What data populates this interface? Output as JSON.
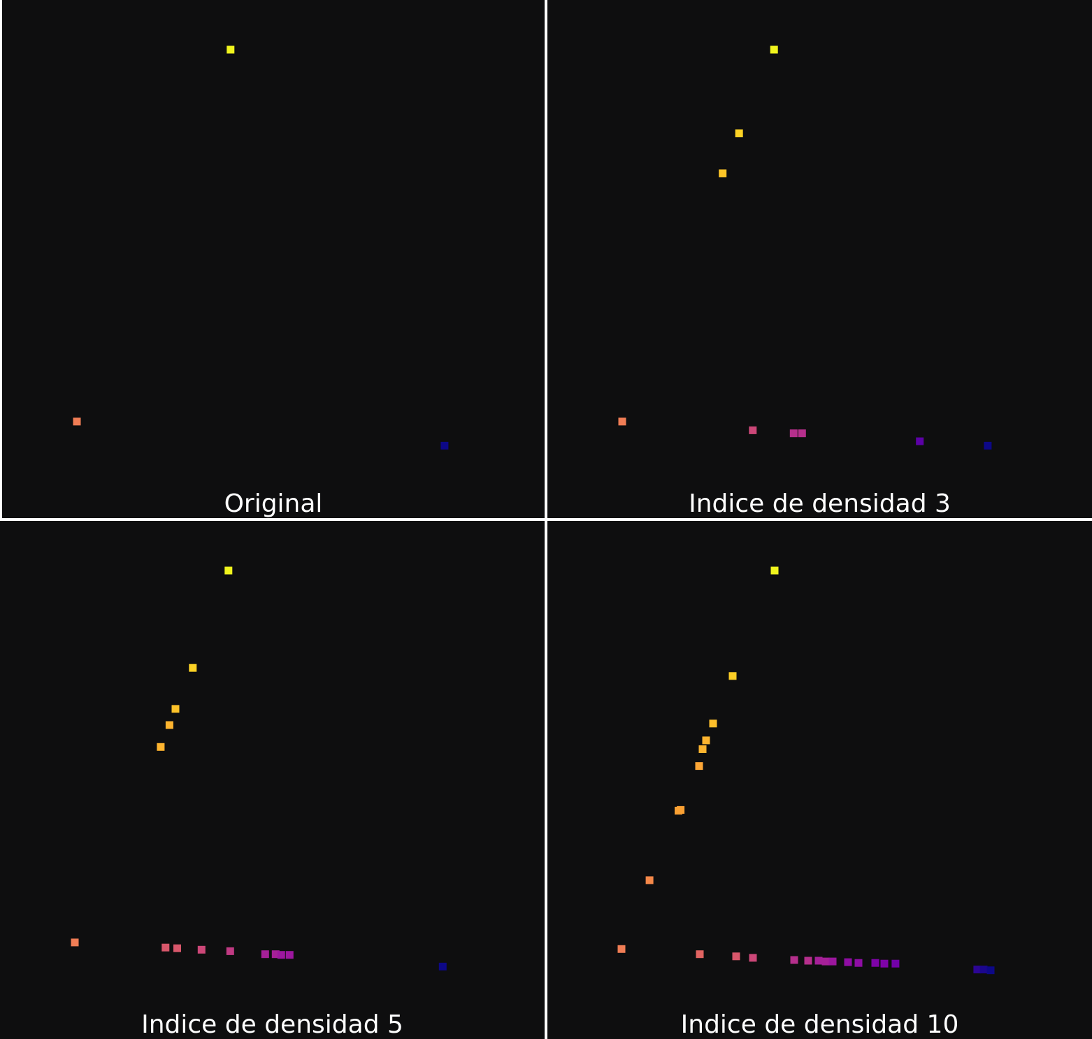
{
  "chart_data": [
    {
      "type": "scatter",
      "title": "Original",
      "xlim": [
        0,
        1
      ],
      "ylim": [
        0,
        1
      ],
      "grid": false,
      "points": [
        {
          "x": 0.1374,
          "y": 0.3181,
          "color": "#f07d55"
        },
        {
          "x": 0.4195,
          "y": 1.0,
          "color": "#f0f41d"
        },
        {
          "x": 0.8124,
          "y": 0.2738,
          "color": "#0d0887"
        }
      ]
    },
    {
      "type": "scatter",
      "title": "Indice de densidad 3",
      "xlim": [
        0,
        1
      ],
      "ylim": [
        0,
        1
      ],
      "grid": false,
      "points": [
        {
          "x": 0.1374,
          "y": 0.3181,
          "color": "#f07d55"
        },
        {
          "x": 0.3771,
          "y": 0.302,
          "color": "#cc4778"
        },
        {
          "x": 0.4522,
          "y": 0.2966,
          "color": "#b52f8c"
        },
        {
          "x": 0.4676,
          "y": 0.2966,
          "color": "#b52f8c"
        },
        {
          "x": 0.6838,
          "y": 0.2819,
          "color": "#5c01a6"
        },
        {
          "x": 0.8086,
          "y": 0.2738,
          "color": "#0d0887"
        },
        {
          "x": 0.3218,
          "y": 0.7732,
          "color": "#fdc527"
        },
        {
          "x": 0.352,
          "y": 0.8466,
          "color": "#fcd225"
        },
        {
          "x": 0.4162,
          "y": 1.0,
          "color": "#f0f41d"
        }
      ]
    },
    {
      "type": "scatter",
      "title": "Indice de densidad 5",
      "xlim": [
        0,
        1
      ],
      "ylim": [
        0,
        1
      ],
      "grid": false,
      "points": [
        {
          "x": 0.1374,
          "y": 0.3181,
          "color": "#f07d55"
        },
        {
          "x": 0.304,
          "y": 0.3087,
          "color": "#d8576b"
        },
        {
          "x": 0.3254,
          "y": 0.3074,
          "color": "#d8576b"
        },
        {
          "x": 0.3701,
          "y": 0.3047,
          "color": "#cc4778"
        },
        {
          "x": 0.4227,
          "y": 0.302,
          "color": "#c03a83"
        },
        {
          "x": 0.4869,
          "y": 0.2966,
          "color": "#a62098"
        },
        {
          "x": 0.5061,
          "y": 0.2966,
          "color": "#a62098"
        },
        {
          "x": 0.5164,
          "y": 0.2953,
          "color": "#9c179e"
        },
        {
          "x": 0.5318,
          "y": 0.2953,
          "color": "#9c179e"
        },
        {
          "x": 0.813,
          "y": 0.2738,
          "color": "#0d0887"
        },
        {
          "x": 0.2951,
          "y": 0.6765,
          "color": "#fdb42f"
        },
        {
          "x": 0.3112,
          "y": 0.7167,
          "color": "#fdb42f"
        },
        {
          "x": 0.3222,
          "y": 0.7463,
          "color": "#fcc229"
        },
        {
          "x": 0.354,
          "y": 0.8215,
          "color": "#fcd225"
        },
        {
          "x": 0.4195,
          "y": 1.0,
          "color": "#f0f41d"
        }
      ]
    },
    {
      "type": "scatter",
      "title": "Indice de densidad 10",
      "xlim": [
        0,
        1
      ],
      "ylim": [
        0,
        1
      ],
      "grid": false,
      "points": [
        {
          "x": 0.1361,
          "y": 0.306,
          "color": "#f07d55"
        },
        {
          "x": 0.2798,
          "y": 0.2966,
          "color": "#e16462"
        },
        {
          "x": 0.3466,
          "y": 0.2926,
          "color": "#d8576b"
        },
        {
          "x": 0.3774,
          "y": 0.2899,
          "color": "#cc4778"
        },
        {
          "x": 0.4531,
          "y": 0.2859,
          "color": "#b52f8c"
        },
        {
          "x": 0.4788,
          "y": 0.2846,
          "color": "#b52f8c"
        },
        {
          "x": 0.4981,
          "y": 0.2846,
          "color": "#a62098"
        },
        {
          "x": 0.5109,
          "y": 0.2832,
          "color": "#a62098"
        },
        {
          "x": 0.5237,
          "y": 0.2832,
          "color": "#9c179e"
        },
        {
          "x": 0.552,
          "y": 0.2819,
          "color": "#8f0da4"
        },
        {
          "x": 0.5712,
          "y": 0.2805,
          "color": "#8f0da4"
        },
        {
          "x": 0.602,
          "y": 0.2805,
          "color": "#7e03a8"
        },
        {
          "x": 0.6187,
          "y": 0.2792,
          "color": "#7e03a8"
        },
        {
          "x": 0.6392,
          "y": 0.2792,
          "color": "#7201a8"
        },
        {
          "x": 0.7894,
          "y": 0.2684,
          "color": "#2c0594"
        },
        {
          "x": 0.801,
          "y": 0.2684,
          "color": "#1b068d"
        },
        {
          "x": 0.8138,
          "y": 0.2671,
          "color": "#0d0887"
        },
        {
          "x": 0.1875,
          "y": 0.4322,
          "color": "#f48849"
        },
        {
          "x": 0.2407,
          "y": 0.5597,
          "color": "#f9a033"
        },
        {
          "x": 0.2447,
          "y": 0.561,
          "color": "#f9a033"
        },
        {
          "x": 0.2786,
          "y": 0.6416,
          "color": "#fca636"
        },
        {
          "x": 0.285,
          "y": 0.6725,
          "color": "#fdb42f"
        },
        {
          "x": 0.2914,
          "y": 0.6886,
          "color": "#fdb42f"
        },
        {
          "x": 0.3043,
          "y": 0.7195,
          "color": "#fdbf2b"
        },
        {
          "x": 0.3402,
          "y": 0.8067,
          "color": "#fcce25"
        },
        {
          "x": 0.4172,
          "y": 1.0,
          "color": "#f0f41d"
        }
      ]
    }
  ]
}
